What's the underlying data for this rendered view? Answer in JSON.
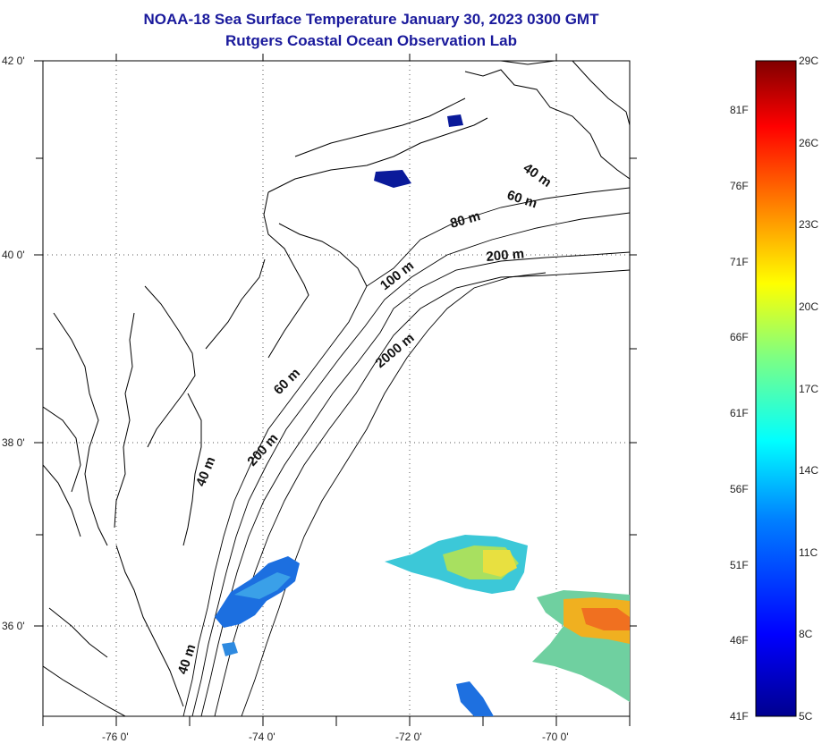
{
  "title": {
    "line1": "NOAA-18 Sea Surface Temperature January 30, 2023 0300 GMT",
    "line2": "Rutgers Coastal Ocean Observation Lab"
  },
  "axes": {
    "lat_labels": [
      "42 0'",
      "40 0'",
      "38 0'",
      "36 0'"
    ],
    "lon_labels": [
      "-76 0'",
      "-74 0'",
      "-72 0'",
      "-70 0'"
    ]
  },
  "isobaths": [
    "40 m",
    "60 m",
    "80 m",
    "200 m",
    "100 m",
    "2000 m",
    "60 m",
    "200 m",
    "40 m",
    "40 m"
  ],
  "colorbar": {
    "fahrenheit": [
      "81F",
      "76F",
      "71F",
      "66F",
      "61F",
      "56F",
      "51F",
      "46F",
      "41F"
    ],
    "celsius": [
      "29C",
      "26C",
      "23C",
      "20C",
      "17C",
      "14C",
      "11C",
      "8C",
      "5C"
    ],
    "colors": [
      "#00008f",
      "#0000ff",
      "#0080ff",
      "#00ffff",
      "#80ff80",
      "#ffff00",
      "#ff8000",
      "#ff0000",
      "#800000"
    ]
  },
  "colors": {
    "title": "#1a1a9c",
    "land_lines": "#000000",
    "grid": "#555555"
  }
}
